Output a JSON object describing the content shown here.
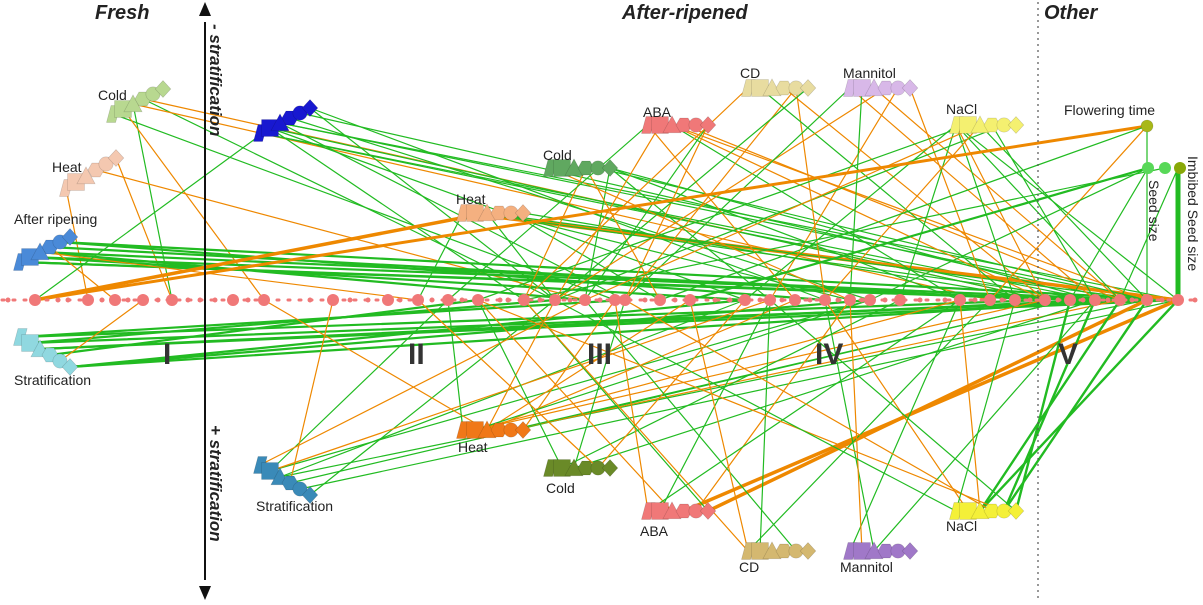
{
  "headers": {
    "fresh": "Fresh",
    "after_ripened": "After-ripened",
    "other": "Other"
  },
  "axis": {
    "minus": "- stratification",
    "plus": "+ stratification"
  },
  "regions": [
    "I",
    "II",
    "III",
    "IV",
    "V"
  ],
  "groups": {
    "f_cold": "Cold",
    "f_heat": "Heat",
    "f_afterripening": "After ripening",
    "f_strat": "Stratification",
    "a_strat_minus": "",
    "a_strat_plus": "Stratification",
    "a_heat_minus": "Heat",
    "a_heat_plus": "Heat",
    "a_cold_minus": "Cold",
    "a_cold_plus": "Cold",
    "a_aba_minus": "ABA",
    "a_aba_plus": "ABA",
    "a_cd_minus": "CD",
    "a_cd_plus": "CD",
    "a_mannitol_minus": "Mannitol",
    "a_mannitol_plus": "Mannitol",
    "a_nacl_minus": "NaCl",
    "a_nacl_plus": "NaCl",
    "o_flowering": "Flowering time",
    "o_seedsize": "Seed size",
    "o_imbibed": "Imbibed Seed size"
  },
  "colors": {
    "positive": "#22bb22",
    "negative": "#ee8800",
    "qtl": "#f07878",
    "cold_fresh": "#b8d890",
    "heat_fresh": "#f4c8b0",
    "afterripening": "#4a8ad8",
    "strat_fresh": "#90d8e0",
    "strat_minus": "#1818d0",
    "strat_plus": "#3a8ab8",
    "heat_minus": "#f4b080",
    "heat_plus": "#f07818",
    "cold_minus": "#60a860",
    "cold_plus": "#6a8a28",
    "aba": "#f07878",
    "cd_minus": "#e8dca0",
    "cd_plus": "#d4b870",
    "mannitol_minus": "#d8b8e8",
    "mannitol_plus": "#a078c8",
    "nacl_minus": "#f4f070",
    "nacl_plus": "#f4f038",
    "flowering": "#a8b818",
    "seedsize": "#58d858",
    "imbibed": "#88a808"
  }
}
